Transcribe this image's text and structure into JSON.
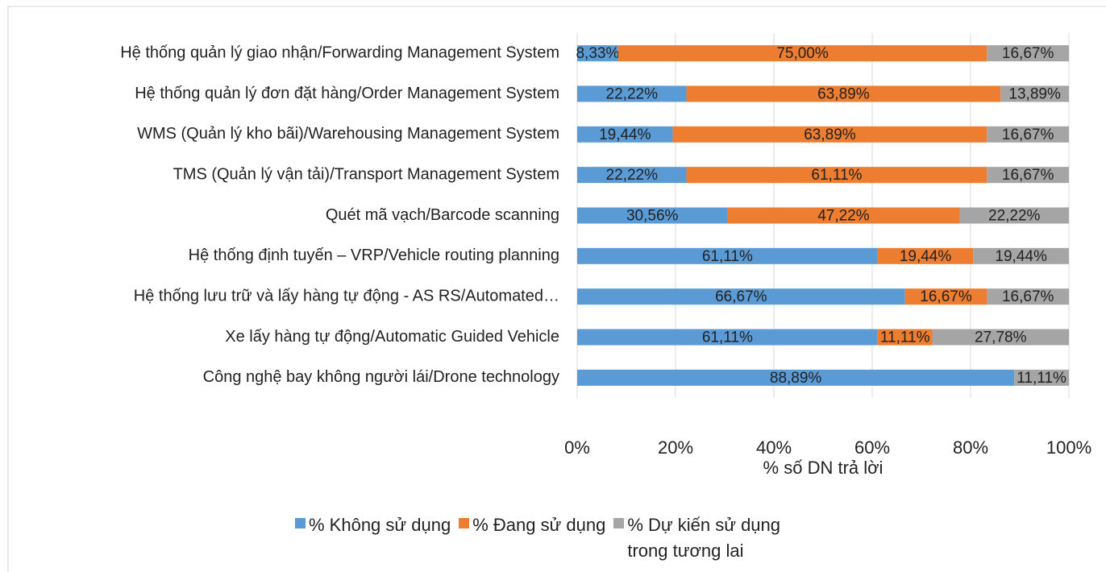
{
  "chart_data": {
    "type": "stacked-bar-horizontal",
    "x_label": "% số DN trả lời",
    "categories": [
      "Hệ thống quản lý giao nhận/Forwarding Management System",
      "Hệ thống quản lý đơn đặt hàng/Order Management System",
      "WMS (Quản lý kho bãi)/Warehousing Management System",
      "TMS (Quản lý vận tải)/Transport Management System",
      "Quét mã vạch/Barcode scanning",
      "Hệ thống định tuyến – VRP/Vehicle routing planning",
      "Hệ thống lưu trữ và lấy hàng tự động - AS RS/Automated…",
      "Xe lấy hàng tự động/Automatic Guided Vehicle",
      "Công nghệ bay không người lái/Drone technology"
    ],
    "series": [
      {
        "name": "% Không sử dụng",
        "color": "#5b9bd5",
        "values": [
          8.33,
          22.22,
          19.44,
          22.22,
          30.56,
          61.11,
          66.67,
          61.11,
          88.89
        ],
        "value_labels": [
          "8,33%",
          "22,22%",
          "19,44%",
          "22,22%",
          "30,56%",
          "61,11%",
          "66,67%",
          "61,11%",
          "88,89%"
        ]
      },
      {
        "name": "% Đang sử dụng",
        "color": "#ed7d31",
        "values": [
          75.0,
          63.89,
          63.89,
          61.11,
          47.22,
          19.44,
          16.67,
          11.11,
          null
        ],
        "value_labels": [
          "75,00%",
          "63,89%",
          "63,89%",
          "61,11%",
          "47,22%",
          "19,44%",
          "16,67%",
          "11,11%",
          null
        ]
      },
      {
        "name": "% Dự kiến sử dụng trong tương lai",
        "color": "#a5a5a5",
        "values": [
          16.67,
          13.89,
          16.67,
          16.67,
          22.22,
          19.44,
          16.67,
          27.78,
          11.11
        ],
        "value_labels": [
          "16,67%",
          "13,89%",
          "16,67%",
          "16,67%",
          "22,22%",
          "19,44%",
          "16,67%",
          "27,78%",
          "11,11%"
        ]
      }
    ],
    "xlim": [
      0,
      100
    ],
    "xticks": [
      {
        "value": 0,
        "label": "0%"
      },
      {
        "value": 20,
        "label": "20%"
      },
      {
        "value": 40,
        "label": "40%"
      },
      {
        "value": 60,
        "label": "60%"
      },
      {
        "value": 80,
        "label": "80%"
      },
      {
        "value": 100,
        "label": "100%"
      }
    ],
    "grid": true,
    "legend": "bottom"
  }
}
